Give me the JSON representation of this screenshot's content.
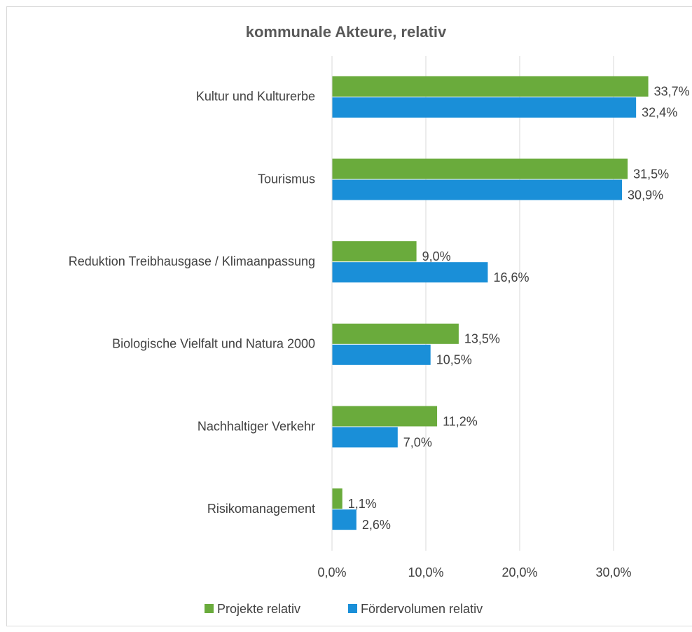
{
  "chart_data": {
    "type": "hbar",
    "title": "kommunale Akteure, relativ",
    "categories": [
      "Kultur und Kulturerbe",
      "Tourismus",
      "Reduktion Treibhausgase / Klimaanpassung",
      "Biologische Vielfalt und Natura 2000",
      "Nachhaltiger Verkehr",
      "Risikomanagement"
    ],
    "series": [
      {
        "name": "Projekte relativ",
        "color": "#6aab3c",
        "values": [
          33.7,
          31.5,
          9.0,
          13.5,
          11.2,
          1.1
        ],
        "value_labels": [
          "33,7%",
          "31,5%",
          "9,0%",
          "13,5%",
          "11,2%",
          "1,1%"
        ]
      },
      {
        "name": "Fördervolumen relativ",
        "color": "#1a8fd8",
        "values": [
          32.4,
          30.9,
          16.6,
          10.5,
          7.0,
          2.6
        ],
        "value_labels": [
          "32,4%",
          "30,9%",
          "16,6%",
          "10,5%",
          "7,0%",
          "2,6%"
        ]
      }
    ],
    "xlim": [
      0,
      40
    ],
    "xticks": [
      {
        "value": 0,
        "label": "0,0%"
      },
      {
        "value": 10,
        "label": "10,0%"
      },
      {
        "value": 20,
        "label": "20,0%"
      },
      {
        "value": 30,
        "label": "30,0%"
      }
    ],
    "grid": true,
    "legend": "bottom"
  }
}
